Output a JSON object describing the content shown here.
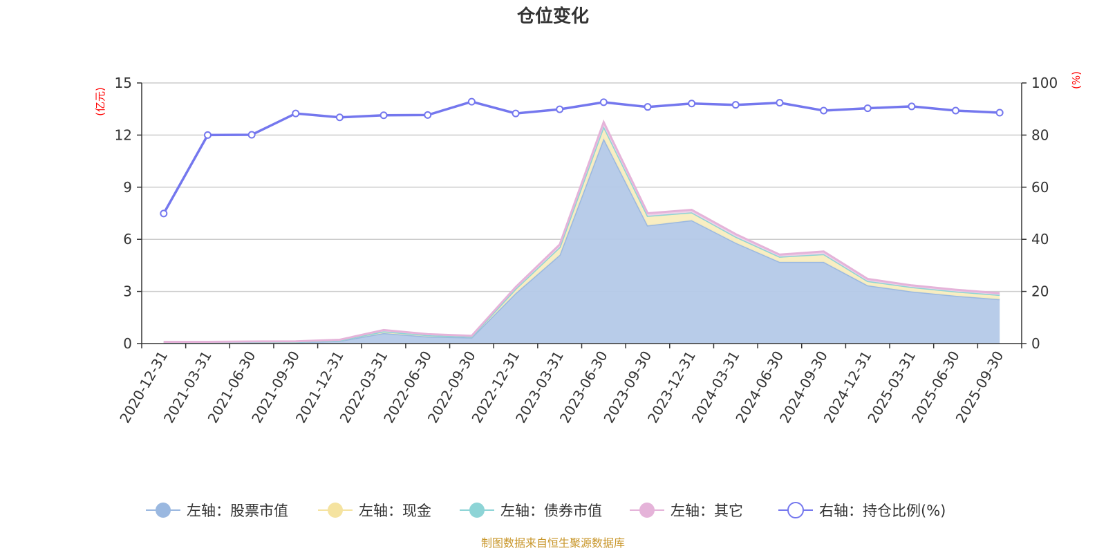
{
  "chart_data": {
    "type": "area",
    "title": "仓位变化",
    "left_axis": {
      "unit": "(亿元)",
      "ylim": [
        0,
        15
      ],
      "ticks": [
        0,
        3,
        6,
        9,
        12,
        15
      ]
    },
    "right_axis": {
      "unit": "(%)",
      "ylim": [
        0,
        100
      ],
      "ticks": [
        0,
        20,
        40,
        60,
        80,
        100
      ]
    },
    "categories": [
      "2020-12-31",
      "2021-03-31",
      "2021-06-30",
      "2021-09-30",
      "2021-12-31",
      "2022-03-31",
      "2022-06-30",
      "2022-09-30",
      "2022-12-31",
      "2023-03-31",
      "2023-06-30",
      "2023-09-30",
      "2023-12-31",
      "2024-03-31",
      "2024-06-30",
      "2024-09-30",
      "2024-12-31",
      "2025-03-31",
      "2025-06-30",
      "2025-09-30"
    ],
    "series": [
      {
        "name": "左轴：股票市值",
        "axis": "left",
        "stack": true,
        "color": "#9ab8e0",
        "fill": "#b4c9e8",
        "values": [
          0.05,
          0.05,
          0.07,
          0.08,
          0.15,
          0.6,
          0.4,
          0.35,
          2.9,
          5.1,
          11.8,
          6.8,
          7.1,
          5.8,
          4.7,
          4.7,
          3.35,
          3.0,
          2.75,
          2.55
        ]
      },
      {
        "name": "左轴：现金",
        "axis": "left",
        "stack": true,
        "color": "#f5e3a0",
        "fill": "#f9edbf",
        "values": [
          0.03,
          0.03,
          0.03,
          0.03,
          0.04,
          0.1,
          0.08,
          0.05,
          0.25,
          0.45,
          0.7,
          0.55,
          0.45,
          0.35,
          0.3,
          0.45,
          0.25,
          0.25,
          0.25,
          0.25
        ]
      },
      {
        "name": "左轴：债券市值",
        "axis": "left",
        "stack": true,
        "color": "#8dd4d6",
        "fill": "#b6e6e7",
        "values": [
          0,
          0,
          0,
          0,
          0,
          0,
          0,
          0,
          0,
          0,
          0,
          0,
          0,
          0,
          0,
          0,
          0,
          0,
          0,
          0
        ]
      },
      {
        "name": "左轴：其它",
        "axis": "left",
        "stack": true,
        "color": "#e5b3d9",
        "fill": "#f0d2e9",
        "values": [
          0.02,
          0.02,
          0.02,
          0.02,
          0.03,
          0.08,
          0.06,
          0.05,
          0.1,
          0.15,
          0.25,
          0.15,
          0.15,
          0.15,
          0.12,
          0.15,
          0.12,
          0.1,
          0.1,
          0.1
        ]
      },
      {
        "name": "右轴：持仓比例(%)",
        "axis": "right",
        "type": "line",
        "color": "#7477ee",
        "values": [
          49.9,
          80.0,
          80.1,
          88.3,
          86.8,
          87.6,
          87.7,
          92.8,
          88.3,
          89.9,
          92.6,
          90.8,
          92.1,
          91.6,
          92.4,
          89.4,
          90.3,
          91.0,
          89.4,
          88.6
        ]
      }
    ],
    "grid": true,
    "legend_position": "bottom"
  },
  "footer": {
    "source": "制图数据来自恒生聚源数据库"
  }
}
